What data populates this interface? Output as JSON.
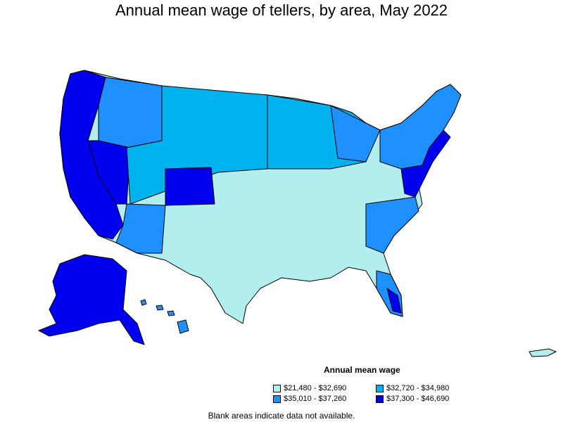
{
  "title": "Annual mean wage of tellers, by area, May 2022",
  "legend": {
    "title": "Annual mean wage",
    "items": [
      {
        "label": "$21,480 - $32,690",
        "color": "#b3eeee"
      },
      {
        "label": "$32,720 - $34,980",
        "color": "#00b2ee"
      },
      {
        "label": "$35,010 - $37,260",
        "color": "#1e90ff"
      },
      {
        "label": "$37,300 - $46,690",
        "color": "#0000ee"
      }
    ]
  },
  "note": "Blank areas indicate data not available."
}
